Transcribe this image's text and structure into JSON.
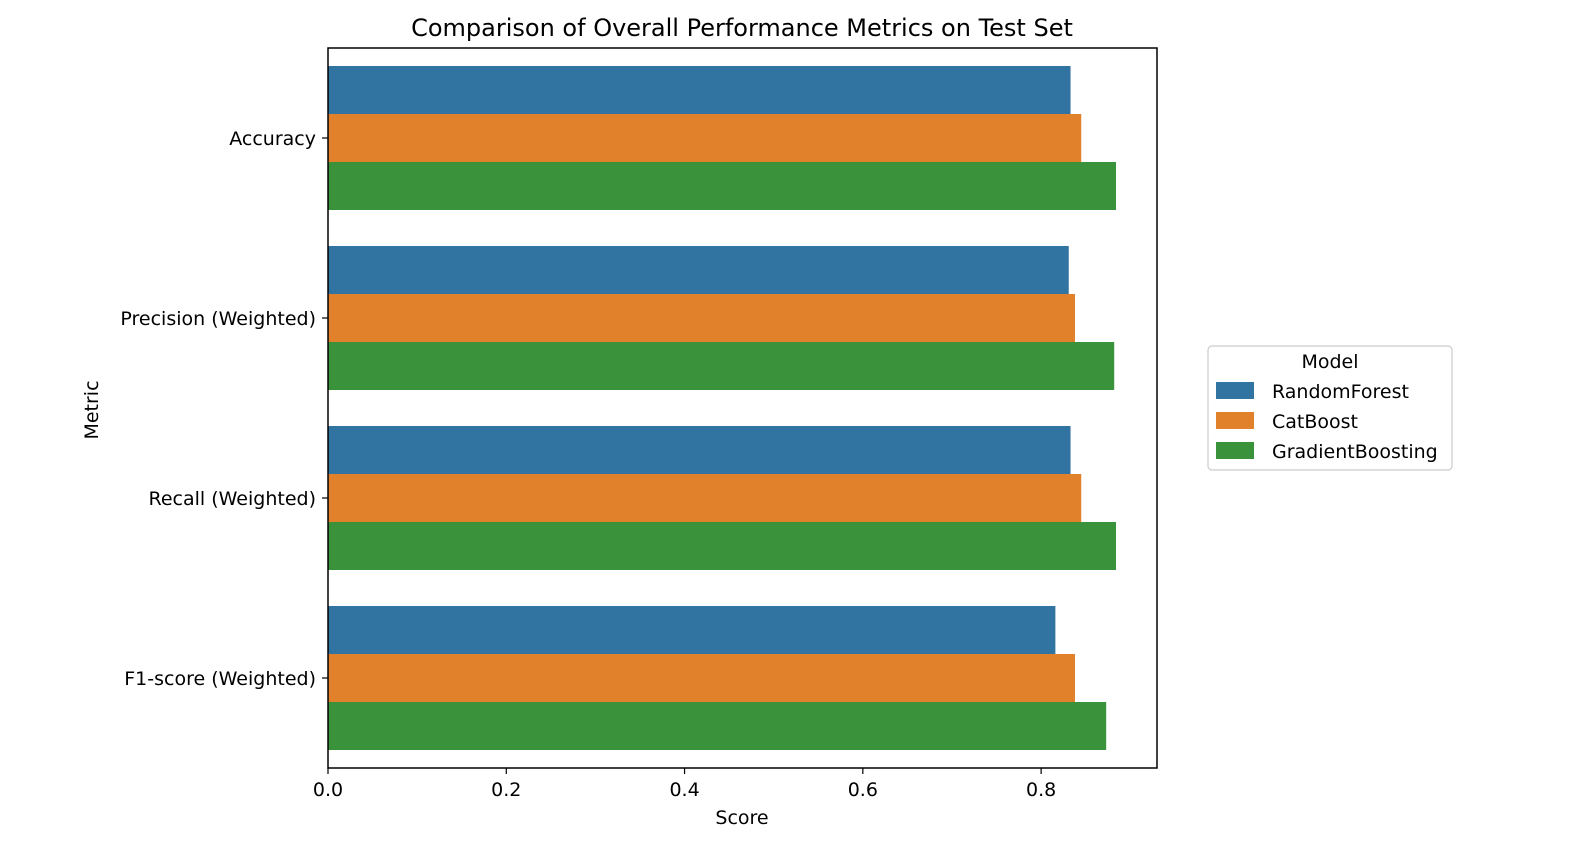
{
  "chart_data": {
    "type": "bar",
    "orientation": "horizontal",
    "title": "Comparison of Overall Performance Metrics on Test Set",
    "xlabel": "Score",
    "ylabel": "Metric",
    "categories": [
      "Accuracy",
      "Precision (Weighted)",
      "Recall (Weighted)",
      "F1-score (Weighted)"
    ],
    "series": [
      {
        "name": "RandomForest",
        "color": "#3274a1",
        "values": [
          0.833,
          0.831,
          0.833,
          0.816
        ]
      },
      {
        "name": "CatBoost",
        "color": "#e1812c",
        "values": [
          0.845,
          0.838,
          0.845,
          0.838
        ]
      },
      {
        "name": "GradientBoosting",
        "color": "#3a923a",
        "values": [
          0.884,
          0.882,
          0.884,
          0.873
        ]
      }
    ],
    "xlim": [
      0,
      0.93
    ],
    "xticks": [
      "0.0",
      "0.2",
      "0.4",
      "0.6",
      "0.8"
    ],
    "legend": {
      "title": "Model",
      "placement": "right, outside plot"
    },
    "grid": false
  }
}
